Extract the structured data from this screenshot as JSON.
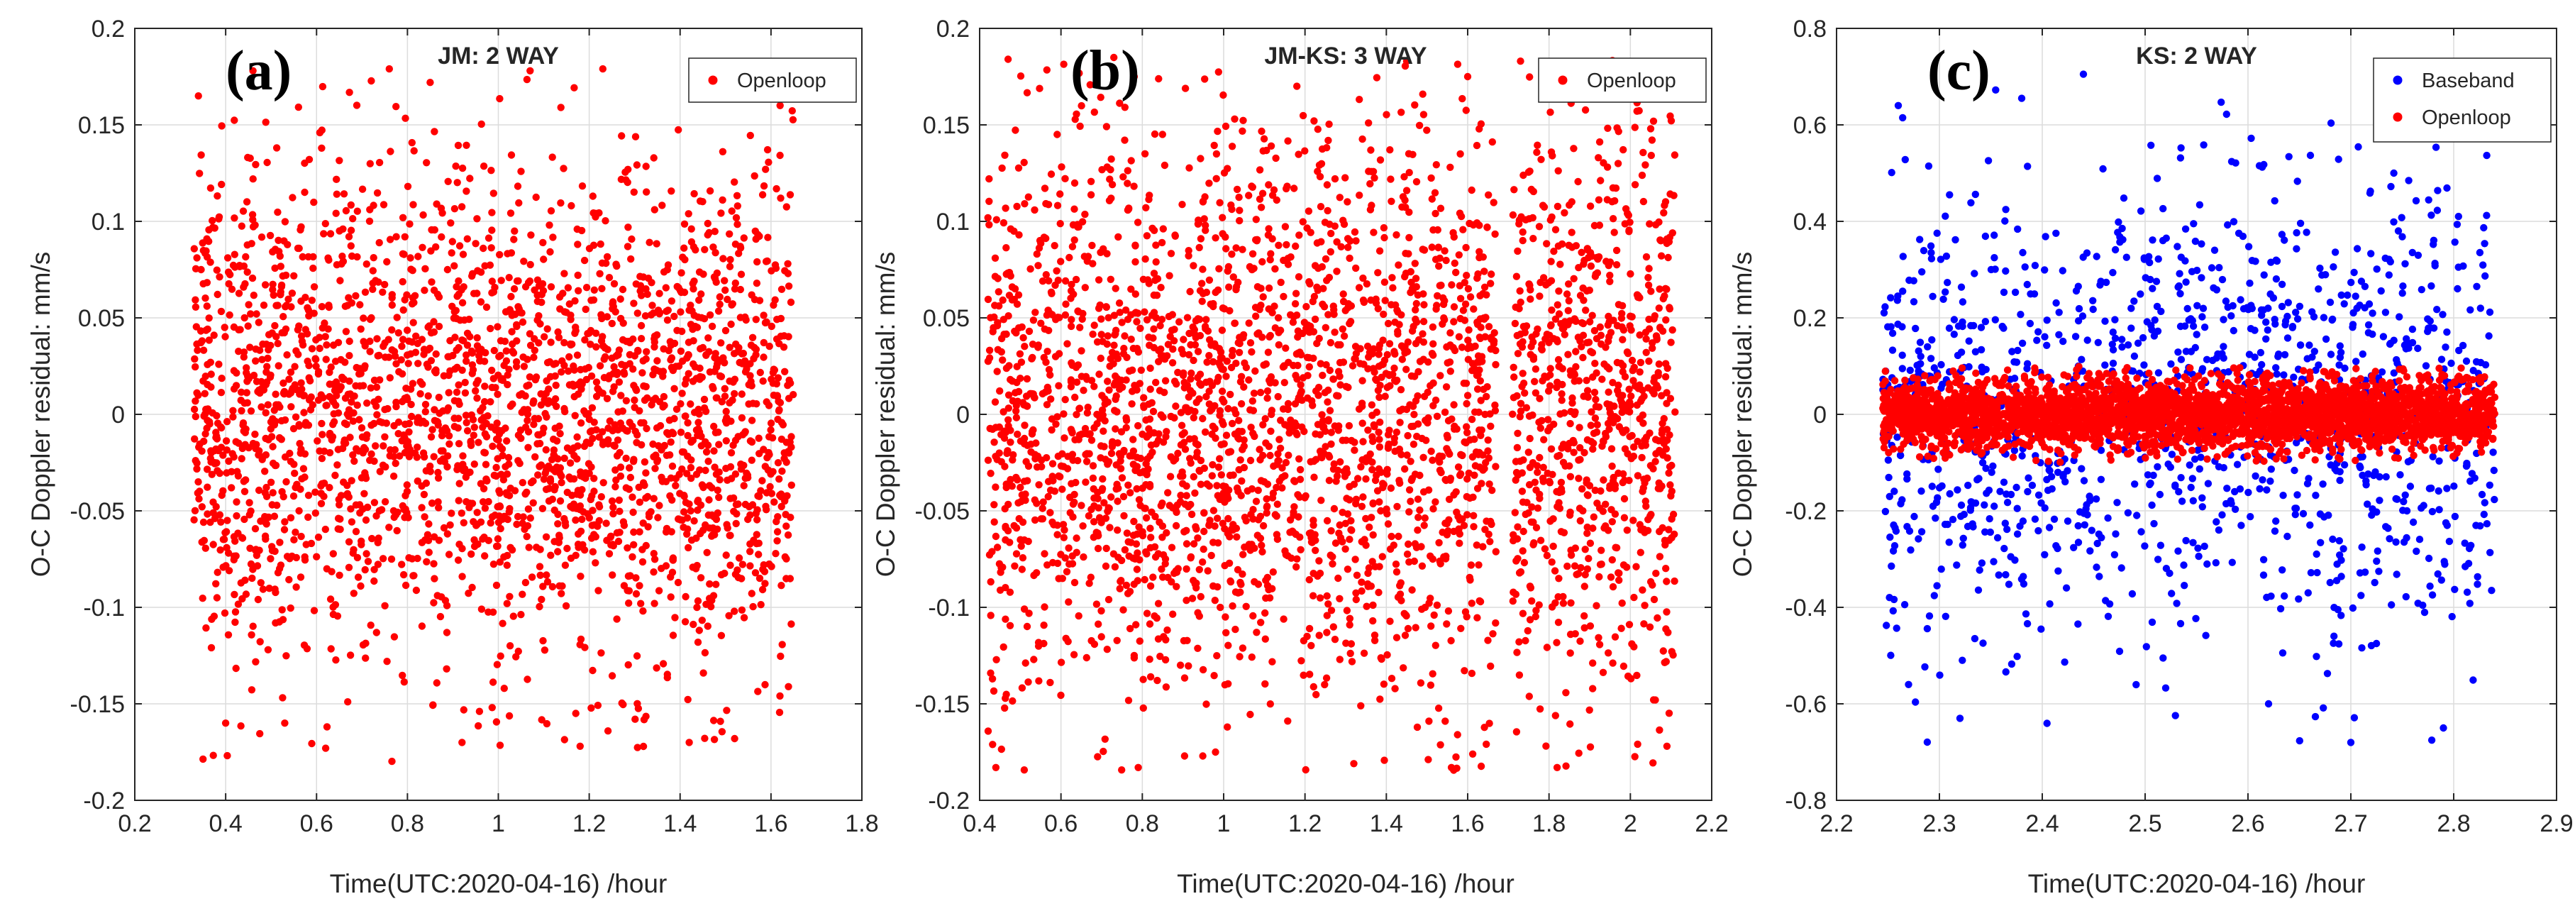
{
  "figure": {
    "panel_count": 3
  },
  "chart_data": [
    {
      "type": "scatter",
      "panel_label": "(a)",
      "title": "JM: 2 WAY",
      "xlabel": "Time(UTC:2020-04-16) /hour",
      "ylabel": "O-C Doppler residual: mm/s",
      "xlim": [
        0.2,
        1.8
      ],
      "ylim": [
        -0.2,
        0.2
      ],
      "xticks": [
        "0.2",
        "0.4",
        "0.6",
        "0.8",
        "1",
        "1.2",
        "1.4",
        "1.6",
        "1.8"
      ],
      "yticks": [
        "-0.2",
        "-0.15",
        "-0.1",
        "-0.05",
        "0",
        "0.05",
        "0.1",
        "0.15",
        "0.2"
      ],
      "grid": true,
      "legend_position": "top-right",
      "series": [
        {
          "name": "Openloop",
          "color": "#ff0000",
          "x_range": [
            0.33,
            1.65
          ],
          "std": 0.065,
          "clip": [
            -0.18,
            0.18
          ],
          "gaps": [],
          "count": 2600,
          "points": [
            [
              0.46,
              0.178
            ],
            [
              0.76,
              0.179
            ],
            [
              1.23,
              0.179
            ],
            [
              1.43,
              0.178
            ],
            [
              0.34,
              0.165
            ],
            [
              0.62,
              -0.173
            ],
            [
              0.92,
              -0.17
            ],
            [
              1.18,
              -0.172
            ],
            [
              1.42,
              -0.17
            ],
            [
              0.4,
              -0.16
            ],
            [
              1.62,
              0.16
            ],
            [
              1.07,
              0.178
            ],
            [
              0.53,
              -0.16
            ],
            [
              1.52,
              -0.168
            ],
            [
              0.85,
              0.172
            ]
          ]
        }
      ]
    },
    {
      "type": "scatter",
      "panel_label": "(b)",
      "title": "JM-KS: 3 WAY",
      "xlabel": "Time(UTC:2020-04-16) /hour",
      "ylabel": "O-C Doppler residual: mm/s",
      "xlim": [
        0.4,
        2.2
      ],
      "ylim": [
        -0.2,
        0.2
      ],
      "xticks": [
        "0.4",
        "0.6",
        "0.8",
        "1",
        "1.2",
        "1.4",
        "1.6",
        "1.8",
        "2",
        "2.2"
      ],
      "yticks": [
        "-0.2",
        "-0.15",
        "-0.1",
        "-0.05",
        "0",
        "0.05",
        "0.1",
        "0.15",
        "0.2"
      ],
      "grid": true,
      "legend_position": "top-right",
      "series": [
        {
          "name": "Openloop",
          "color": "#ff0000",
          "x_range": [
            0.42,
            2.11
          ],
          "std": 0.075,
          "clip": [
            -0.185,
            0.185
          ],
          "gaps": [
            [
              1.67,
              1.71
            ]
          ],
          "count": 3100,
          "points": [
            [
              0.47,
              0.184
            ],
            [
              0.78,
              0.175
            ],
            [
              1.45,
              0.183
            ],
            [
              1.73,
              0.183
            ],
            [
              1.6,
              0.175
            ],
            [
              0.44,
              -0.183
            ],
            [
              0.79,
              -0.183
            ],
            [
              1.32,
              -0.181
            ],
            [
              1.56,
              -0.183
            ],
            [
              1.82,
              -0.183
            ],
            [
              2.09,
              -0.172
            ],
            [
              1.18,
              0.17
            ],
            [
              2.05,
              0.148
            ],
            [
              0.98,
              -0.175
            ],
            [
              1.97,
              0.13
            ]
          ]
        }
      ]
    },
    {
      "type": "scatter",
      "panel_label": "(c)",
      "title": "KS: 2 WAY",
      "xlabel": "Time(UTC:2020-04-16) /hour",
      "ylabel": "O-C Doppler residual: mm/s",
      "xlim": [
        2.2,
        2.9
      ],
      "ylim": [
        -0.8,
        0.8
      ],
      "xticks": [
        "2.2",
        "2.3",
        "2.4",
        "2.5",
        "2.6",
        "2.7",
        "2.8",
        "2.9"
      ],
      "yticks": [
        "-0.8",
        "-0.6",
        "-0.4",
        "-0.2",
        "0",
        "0.2",
        "0.4",
        "0.6",
        "0.8"
      ],
      "grid": true,
      "legend_position": "top-right",
      "series": [
        {
          "name": "Baseband",
          "color": "#0000ff",
          "x_range": [
            2.245,
            2.84
          ],
          "std": 0.25,
          "clip": [
            -0.68,
            0.7
          ],
          "gaps": [],
          "count": 1300,
          "points": [
            [
              2.44,
              0.705
            ],
            [
              2.26,
              0.64
            ],
            [
              2.38,
              0.655
            ],
            [
              2.81,
              0.6
            ],
            [
              2.84,
              0.58
            ],
            [
              2.7,
              -0.68
            ],
            [
              2.32,
              -0.63
            ],
            [
              2.79,
              -0.65
            ],
            [
              2.62,
              -0.6
            ],
            [
              2.27,
              -0.56
            ]
          ]
        },
        {
          "name": "Openloop",
          "color": "#ff0000",
          "x_range": [
            2.245,
            2.84
          ],
          "std": 0.038,
          "clip": [
            -0.1,
            0.1
          ],
          "gaps": [],
          "count": 3200,
          "points": []
        }
      ]
    }
  ]
}
